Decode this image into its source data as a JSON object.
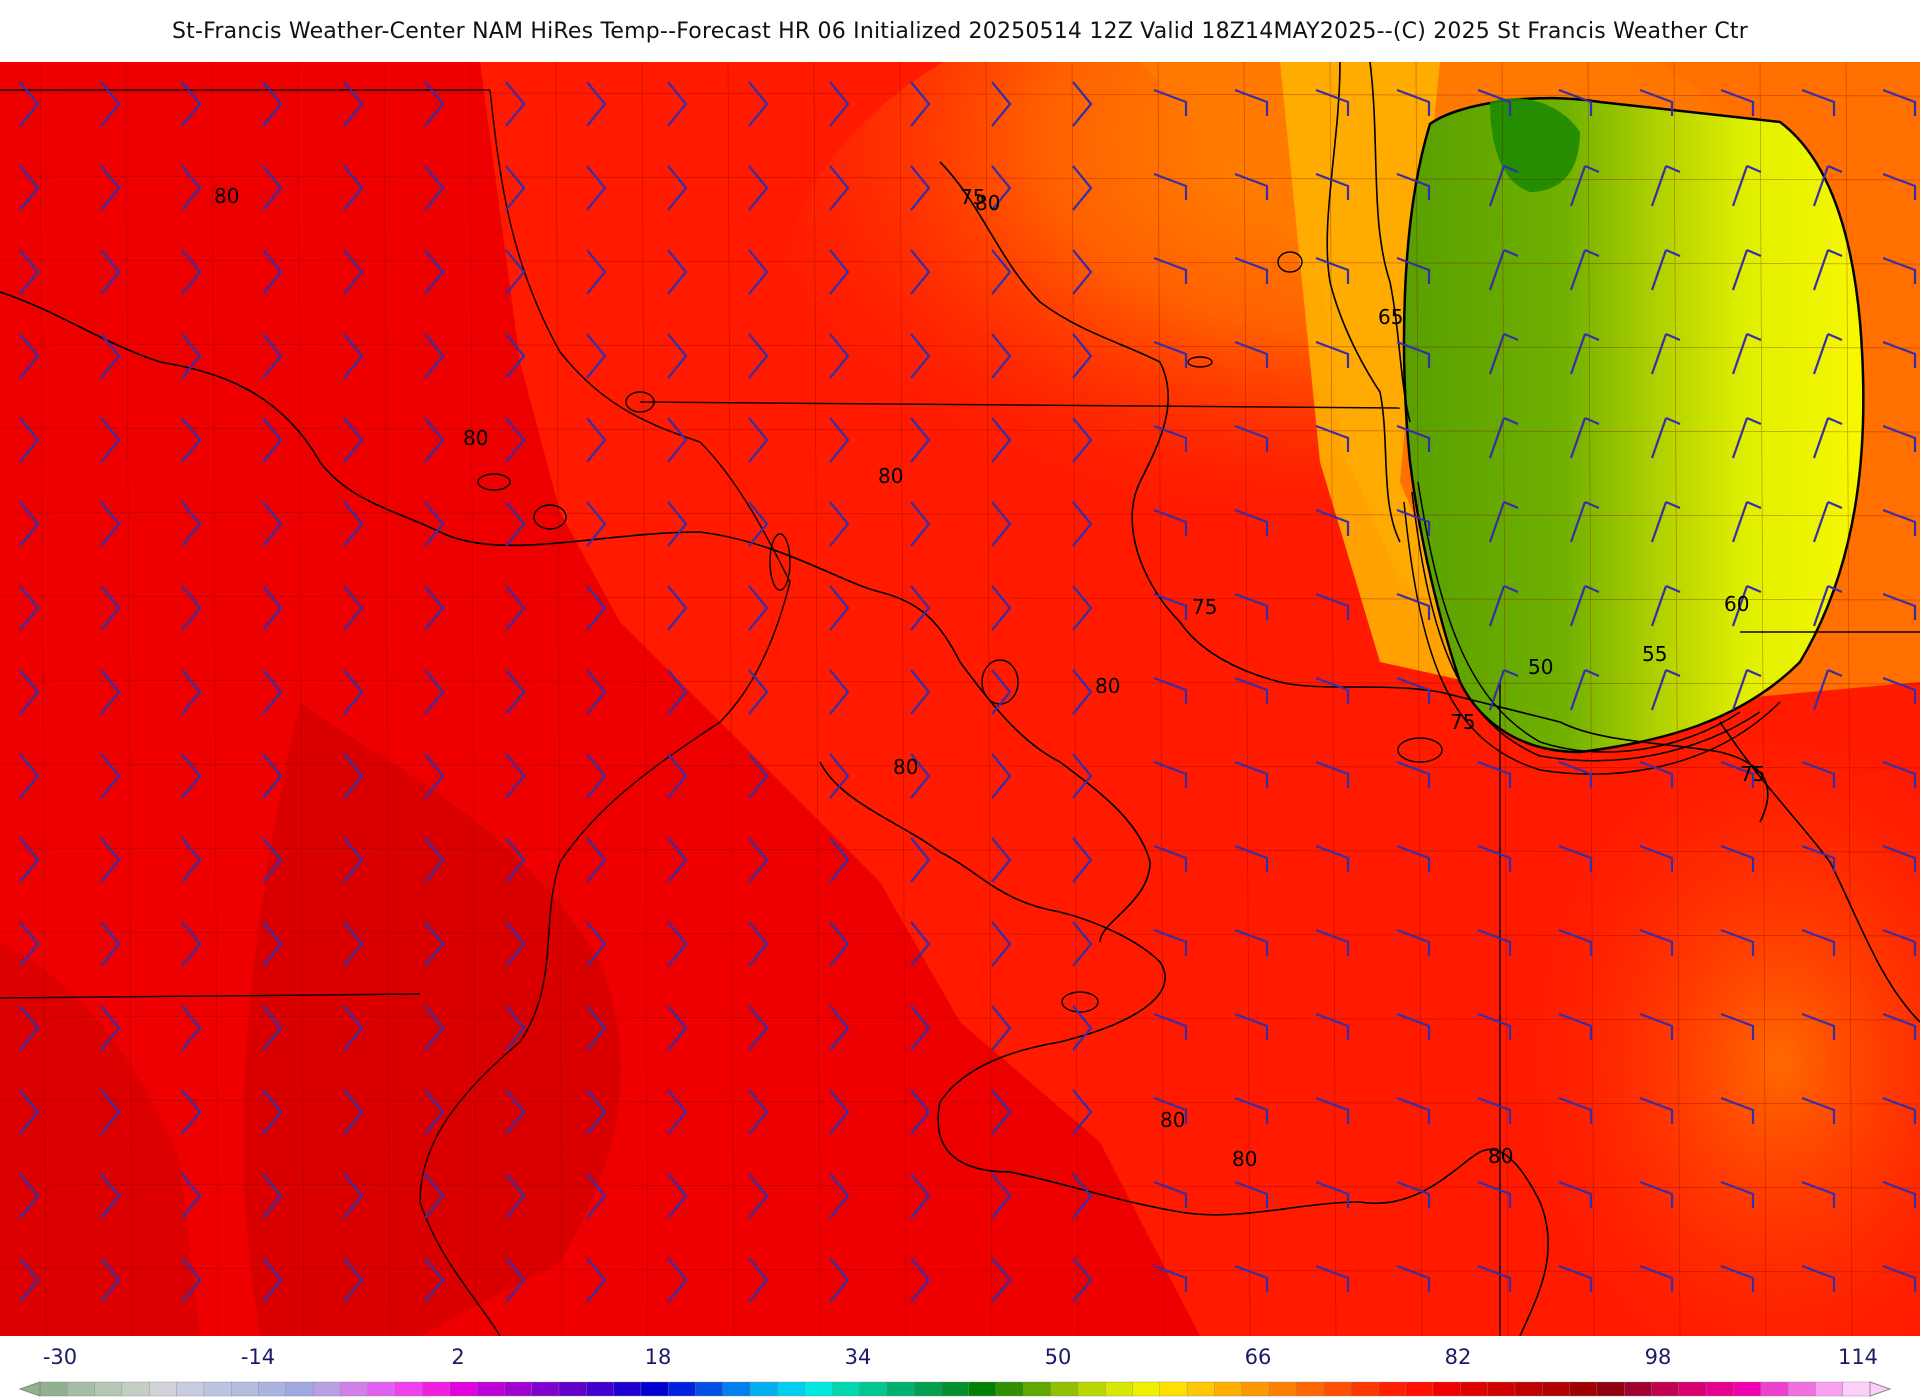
{
  "title": "St-Francis Weather-Center NAM HiRes Temp--Forecast HR 06 Initialized 20250514 12Z Valid 18Z14MAY2025--(C) 2025 St Francis Weather Ctr",
  "map": {
    "background_color": "#ff1a00",
    "contour_labels": [
      {
        "text": "80",
        "position": "upper-left"
      },
      {
        "text": "80",
        "position": "left-center"
      },
      {
        "text": "80",
        "position": "center"
      },
      {
        "text": "80",
        "position": "center"
      },
      {
        "text": "80",
        "position": "center-right"
      },
      {
        "text": "80",
        "position": "lower-center"
      },
      {
        "text": "80",
        "position": "lower-center"
      },
      {
        "text": "80",
        "position": "lower-center"
      },
      {
        "text": "80",
        "position": "lower-right"
      },
      {
        "text": "75",
        "position": "upper-center"
      },
      {
        "text": "75",
        "position": "center-right"
      },
      {
        "text": "75",
        "position": "right"
      },
      {
        "text": "75",
        "position": "right"
      },
      {
        "text": "65",
        "position": "upper-right"
      },
      {
        "text": "60",
        "position": "upper-right"
      },
      {
        "text": "55",
        "position": "upper-right"
      },
      {
        "text": "50",
        "position": "upper-right"
      }
    ],
    "wind_barb_color": "#3a2ea8",
    "contour_color": "#000000"
  },
  "colorbar": {
    "ticks": [
      "-30",
      "-14",
      "2",
      "18",
      "34",
      "50",
      "66",
      "82",
      "98",
      "114"
    ],
    "colors": [
      "#90b090",
      "#a6bda6",
      "#b4c6b4",
      "#c4cec4",
      "#d2d2da",
      "#c8cce0",
      "#bcc4e0",
      "#b4bce0",
      "#aab4e0",
      "#a0a8e0",
      "#b8a0e0",
      "#d080e8",
      "#e060f0",
      "#f040f0",
      "#f020e0",
      "#e000e0",
      "#c000d8",
      "#a000d0",
      "#8000d0",
      "#6000c8",
      "#4000d0",
      "#2000d0",
      "#0000d0",
      "#0020e0",
      "#0050e8",
      "#0080f0",
      "#00b0f0",
      "#00d0f0",
      "#00e8e0",
      "#00d8b0",
      "#00c890",
      "#00b070",
      "#00a050",
      "#009030",
      "#008000",
      "#309000",
      "#60a800",
      "#90c000",
      "#b8d800",
      "#d8e800",
      "#f0f000",
      "#ffe000",
      "#ffc800",
      "#ffb000",
      "#ff9800",
      "#ff8000",
      "#ff6800",
      "#ff5000",
      "#ff3800",
      "#ff2000",
      "#ff1000",
      "#f00000",
      "#e00000",
      "#d00000",
      "#c00000",
      "#b00000",
      "#a00000",
      "#900010",
      "#a00030",
      "#c00050",
      "#d80070",
      "#e80090",
      "#f000b0",
      "#f040d0",
      "#f070e0",
      "#f8a0f0",
      "#fcd0f8"
    ]
  }
}
